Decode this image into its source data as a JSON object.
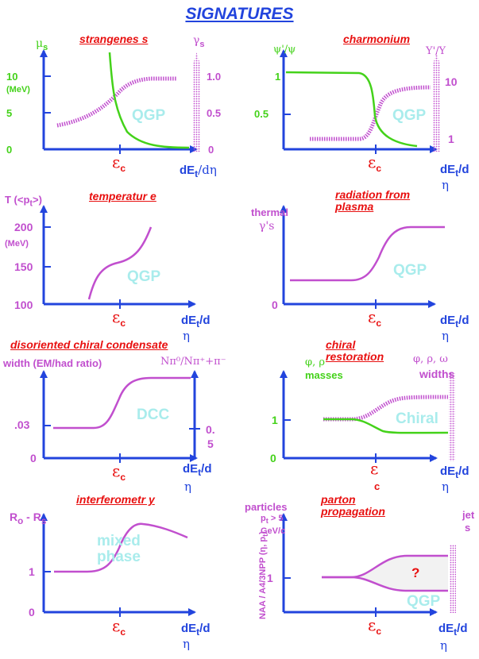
{
  "page_title": "SIGNATURES",
  "panels": [
    {
      "title": "strangenes s",
      "y_left": "μ",
      "y_left_sub": "s",
      "y_left_unit": "(MeV)",
      "y_left_ticks": [
        "10",
        "5",
        "0"
      ],
      "y_right": "γ",
      "y_right_sub": "s",
      "y_right_ticks": [
        "1.0",
        "0.5",
        "0"
      ],
      "x_label": "dE",
      "x_label_sub": "t",
      "x_label_rest": "/dη",
      "ec": "ε",
      "ec_sub": "c",
      "region": "QGP"
    },
    {
      "title": "charmonium",
      "y_left": "ψ'/ψ",
      "y_left_ticks": [
        "1",
        "0.5"
      ],
      "y_right": "Υ'/Υ",
      "y_right_ticks": [
        "10",
        "1"
      ],
      "x_label": "dE",
      "x_label_sub": "t",
      "x_label_rest": "/d",
      "x_label_eta": "η",
      "ec": "ε",
      "ec_sub": "c",
      "region": "QGP"
    },
    {
      "title": "temperatur e",
      "y_left": "T (<p",
      "y_left_sub": "t",
      "y_left_rest": ">)",
      "y_left_unit": "(MeV)",
      "y_left_ticks": [
        "200",
        "150",
        "100"
      ],
      "x_label": "dE",
      "x_label_sub": "t",
      "x_label_rest": "/d",
      "x_label_eta": "η",
      "ec": "ε",
      "ec_sub": "c",
      "region": "QGP"
    },
    {
      "title": "radiation from plasma",
      "y_left": "thermal",
      "y_left_line2": "γ's",
      "y_left_ticks": [
        "0"
      ],
      "x_label": "dE",
      "x_label_sub": "t",
      "x_label_rest": "/d",
      "x_label_eta": "η",
      "ec": "ε",
      "ec_sub": "c",
      "region": "QGP"
    },
    {
      "title": "disoriented chiral condensate",
      "y_left": "width (EM/had ratio)",
      "y_left_ticks": [
        ".03",
        "0"
      ],
      "y_right": "Nπ⁰/Nπ⁺+π⁻",
      "y_right_ticks": [
        "0.",
        "5"
      ],
      "x_label": "dE",
      "x_label_sub": "t",
      "x_label_rest": "/d",
      "x_label_eta": "η",
      "ec": "ε",
      "ec_sub": "c",
      "region": "DCC"
    },
    {
      "title": "chiral restoration",
      "y_left": "φ, ρ",
      "y_left_line2": "masses",
      "y_left_ticks": [
        "1",
        "0"
      ],
      "y_right": "φ, ρ, ω",
      "y_right_line2": "widths",
      "x_label": "dE",
      "x_label_sub": "t",
      "x_label_rest": "/d",
      "x_label_eta": "η",
      "ec": "ε",
      "ec_sub": "c",
      "region": "Chiral"
    },
    {
      "title": "interferometr y",
      "y_left": "R",
      "y_left_sub": "o",
      "y_left_rest": " - R",
      "y_left_sub2": "s",
      "y_left_ticks": [
        "1",
        "0"
      ],
      "x_label": "dE",
      "x_label_sub": "t",
      "x_label_rest": "/d",
      "x_label_eta": "η",
      "ec": "ε",
      "ec_sub": "c",
      "region": "mixed phase"
    },
    {
      "title": "parton propagation",
      "y_left": "particles",
      "y_left_line2": "p",
      "y_left_line2_sub": "t",
      "y_left_line2_rest": " > 5",
      "y_left_line3": "GeV/c",
      "y_left_rotated": "NAA / A4/3NPP (η, p",
      "y_left_rotated_sub": "t",
      "y_left_rotated_rest": ")",
      "y_left_ticks": [
        "1"
      ],
      "y_right": "jet",
      "y_right_line2": "s",
      "x_label": "dE",
      "x_label_sub": "t",
      "x_label_rest": "/d",
      "x_label_eta": "η",
      "ec": "ε",
      "ec_sub": "c",
      "region": "QGP",
      "question": "?"
    }
  ],
  "colors": {
    "title": "#2244dd",
    "axis": "#2244dd",
    "panel_title": "#e81010",
    "magenta_curve": "#c14fce",
    "green_curve": "#44d21a",
    "region_label": "#a9ecec",
    "critical_energy": "#e81010"
  }
}
